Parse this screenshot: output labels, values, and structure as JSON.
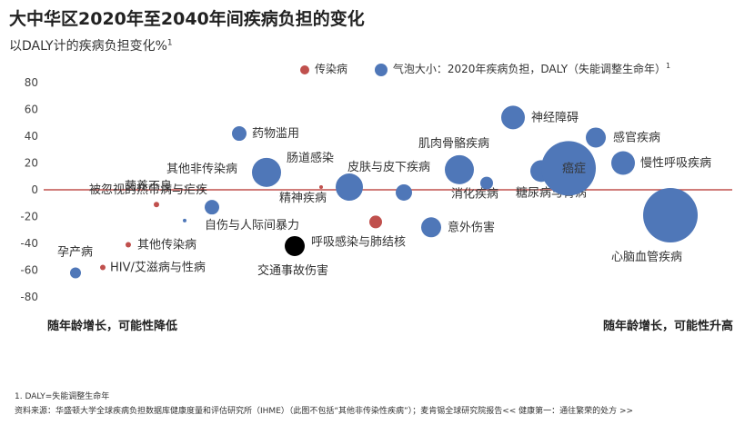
{
  "header": {
    "title": "大中华区2020年至2040年间疾病负担的变化",
    "subtitle": "以DALY计的疾病负担变化%",
    "subtitle_sup": "1"
  },
  "legend": {
    "red_label": "传染病",
    "blue_label": "气泡大小：2020年疾病负担，DALY（失能调整生命年）",
    "blue_sup": "1"
  },
  "bottom": {
    "left": "随年龄增长，可能性降低",
    "right": "随年龄增长，可能性升高"
  },
  "footnote": "1.    DALY=失能调整生命年",
  "source": "资料来源：华盛顿大学全球疾病负担数据库健康度量和评估研究所（IHME）（此图不包括“其他非传染性疾病”）；麦肯锡全球研究院报告<< 健康第一：通往繁荣的处方 >>",
  "colors": {
    "blue": "#4f77b8",
    "red": "#c0504d",
    "black": "#000000",
    "zero_line": "#c0504d",
    "grid": "#dddddd"
  },
  "chart_data": {
    "type": "scatter",
    "ylim": [
      -80,
      80
    ],
    "yticks": [
      80,
      60,
      40,
      20,
      0,
      -20,
      -40,
      -60,
      -80
    ],
    "points": [
      {
        "label": "孕产病",
        "y": -62,
        "color": "blue",
        "size": 6
      },
      {
        "label": "HIV/艾滋病与性病",
        "y": -58,
        "color": "red",
        "size": 3
      },
      {
        "label": "其他传染病",
        "y": -41,
        "color": "red",
        "size": 3
      },
      {
        "label": "营养不良",
        "y": -11,
        "color": "red",
        "size": 3
      },
      {
        "label": "",
        "y": -23,
        "color": "blue",
        "size": 2
      },
      {
        "label": "被忽视的热带病与疟疾",
        "y": 0,
        "color": "red",
        "size": 2
      },
      {
        "label": "自伤与人际间暴力",
        "y": -13,
        "color": "blue",
        "size": 8
      },
      {
        "label": "药物滥用",
        "y": 42,
        "color": "blue",
        "size": 8
      },
      {
        "label": "其他非传染病",
        "y": 13,
        "color": "blue",
        "size": 16
      },
      {
        "label": "交通事故伤害",
        "y": -42,
        "color": "black",
        "size": 11
      },
      {
        "label": "肠道感染",
        "y": 2,
        "color": "red",
        "size": 2
      },
      {
        "label": "精神疾病",
        "y": 2,
        "color": "blue",
        "size": 15
      },
      {
        "label": "呼吸感染与肺结核",
        "y": -24,
        "color": "red",
        "size": 7
      },
      {
        "label": "皮肤与皮下疾病",
        "y": -2,
        "color": "blue",
        "size": 9
      },
      {
        "label": "意外伤害",
        "y": -28,
        "color": "blue",
        "size": 11
      },
      {
        "label": "肌肉骨骼疾病",
        "y": 15,
        "color": "blue",
        "size": 16
      },
      {
        "label": "消化疾病",
        "y": 5,
        "color": "blue",
        "size": 7
      },
      {
        "label": "神经障碍",
        "y": 54,
        "color": "blue",
        "size": 13
      },
      {
        "label": "糖尿病与肾病",
        "y": 14,
        "color": "blue",
        "size": 12
      },
      {
        "label": "癌症",
        "y": 16,
        "color": "blue",
        "size": 30
      },
      {
        "label": "感官疾病",
        "y": 39,
        "color": "blue",
        "size": 11
      },
      {
        "label": "慢性呼吸疾病",
        "y": 20,
        "color": "blue",
        "size": 13
      },
      {
        "label": "心脑血管疾病",
        "y": -19,
        "color": "blue",
        "size": 30
      }
    ]
  }
}
